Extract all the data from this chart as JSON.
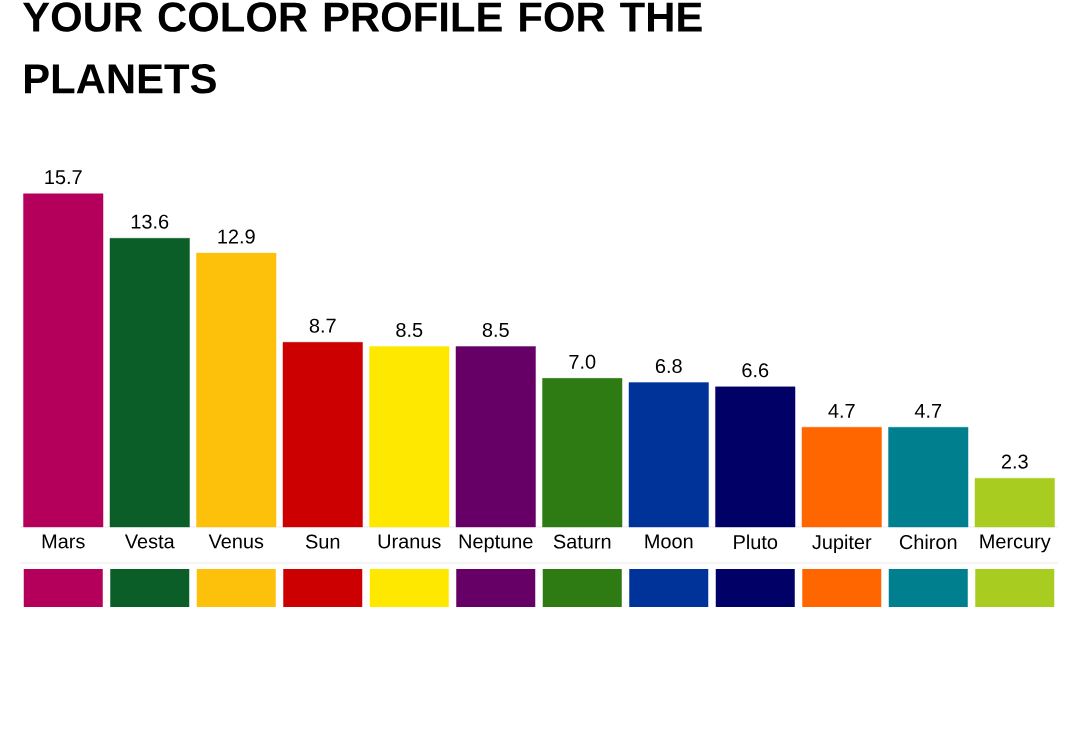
{
  "chart_data": {
    "type": "bar",
    "title": "YOUR COLOR PROFILE FOR THE PLANETS",
    "categories": [
      "Mars",
      "Vesta",
      "Venus",
      "Sun",
      "Uranus",
      "Neptune",
      "Saturn",
      "Moon",
      "Pluto",
      "Jupiter",
      "Chiron",
      "Mercury"
    ],
    "values": [
      15.7,
      13.6,
      12.9,
      8.7,
      8.5,
      8.5,
      7.0,
      6.8,
      6.6,
      4.7,
      4.7,
      2.3
    ],
    "colors": [
      "#b5005b",
      "#0b5e27",
      "#fdc10b",
      "#cc0000",
      "#ffe800",
      "#660066",
      "#2e7a13",
      "#003399",
      "#000066",
      "#ff6600",
      "#00808f",
      "#a8cc1f"
    ],
    "value_labels": [
      "15.7",
      "13.6",
      "12.9",
      "8.7",
      "8.5",
      "8.5",
      "7.0",
      "6.8",
      "6.6",
      "4.7",
      "4.7",
      "2.3"
    ]
  }
}
